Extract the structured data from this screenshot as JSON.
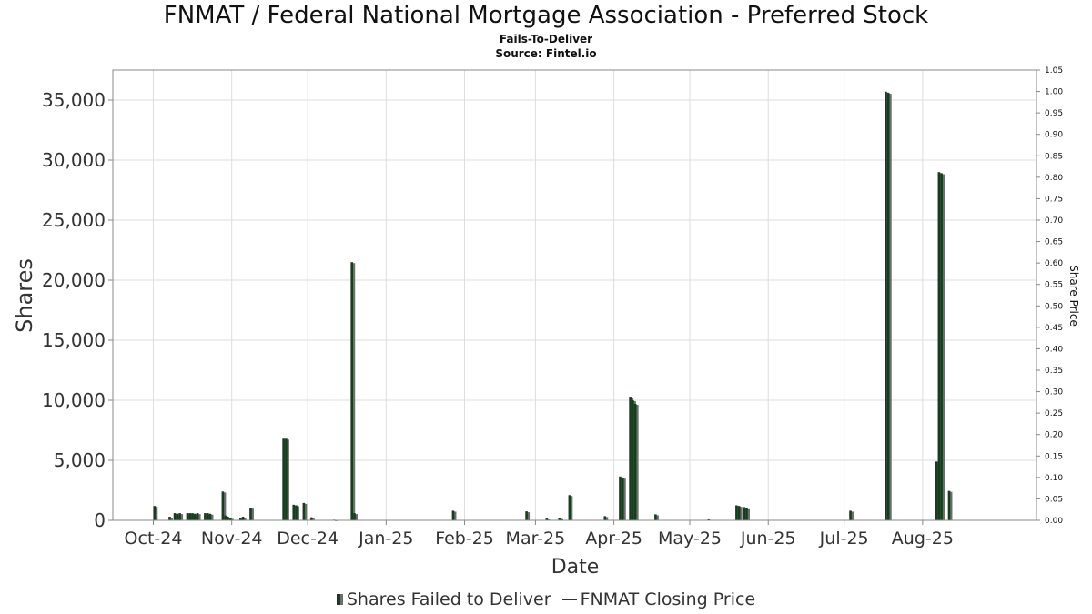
{
  "chart_data": {
    "type": "bar",
    "title": "FNMAT / Federal National Mortgage Association - Preferred Stock",
    "subtitle": "Fails-To-Deliver",
    "source": "Source: Fintel.io",
    "xlabel": "Date",
    "ylabel": "Shares",
    "y2label": "Share Price",
    "ylim": [
      0,
      37500
    ],
    "y2lim": [
      0,
      1.05
    ],
    "yticks": [
      "0",
      "5,000",
      "10,000",
      "15,000",
      "20,000",
      "25,000",
      "30,000",
      "35,000"
    ],
    "y2ticks": [
      "0.00",
      "0.05",
      "0.10",
      "0.15",
      "0.20",
      "0.25",
      "0.30",
      "0.35",
      "0.40",
      "0.45",
      "0.50",
      "0.55",
      "0.60",
      "0.65",
      "0.70",
      "0.75",
      "0.80",
      "0.85",
      "0.90",
      "0.95",
      "1.00",
      "1.05"
    ],
    "xticks": [
      "Oct-24",
      "Nov-24",
      "Dec-24",
      "Jan-25",
      "Feb-25",
      "Mar-25",
      "Apr-25",
      "May-25",
      "Jun-25",
      "Jul-25",
      "Aug-25"
    ],
    "grid": true,
    "legend_position": "bottom",
    "series": [
      {
        "name": "Shares Failed to Deliver",
        "color": "#163e1e",
        "shadow_color": "#6e6e6e",
        "points": [
          {
            "x": "2024-10-01",
            "y": 1200
          },
          {
            "x": "2024-10-07",
            "y": 300
          },
          {
            "x": "2024-10-09",
            "y": 600
          },
          {
            "x": "2024-10-10",
            "y": 550
          },
          {
            "x": "2024-10-11",
            "y": 600
          },
          {
            "x": "2024-10-14",
            "y": 600
          },
          {
            "x": "2024-10-15",
            "y": 600
          },
          {
            "x": "2024-10-16",
            "y": 600
          },
          {
            "x": "2024-10-17",
            "y": 550
          },
          {
            "x": "2024-10-18",
            "y": 600
          },
          {
            "x": "2024-10-21",
            "y": 600
          },
          {
            "x": "2024-10-22",
            "y": 600
          },
          {
            "x": "2024-10-23",
            "y": 550
          },
          {
            "x": "2024-10-28",
            "y": 2400
          },
          {
            "x": "2024-10-29",
            "y": 400
          },
          {
            "x": "2024-10-30",
            "y": 300
          },
          {
            "x": "2024-10-31",
            "y": 200
          },
          {
            "x": "2024-11-04",
            "y": 200
          },
          {
            "x": "2024-11-05",
            "y": 300
          },
          {
            "x": "2024-11-08",
            "y": 1050
          },
          {
            "x": "2024-11-21",
            "y": 6800
          },
          {
            "x": "2024-11-22",
            "y": 6800
          },
          {
            "x": "2024-11-25",
            "y": 1300
          },
          {
            "x": "2024-11-26",
            "y": 1250
          },
          {
            "x": "2024-11-29",
            "y": 1450
          },
          {
            "x": "2024-12-02",
            "y": 250
          },
          {
            "x": "2024-12-11",
            "y": 50
          },
          {
            "x": "2024-12-18",
            "y": 21500
          },
          {
            "x": "2024-12-19",
            "y": 600
          },
          {
            "x": "2025-01-27",
            "y": 800
          },
          {
            "x": "2025-02-25",
            "y": 750
          },
          {
            "x": "2025-03-05",
            "y": 150
          },
          {
            "x": "2025-03-10",
            "y": 150
          },
          {
            "x": "2025-03-11",
            "y": 100
          },
          {
            "x": "2025-03-14",
            "y": 2100
          },
          {
            "x": "2025-03-28",
            "y": 350
          },
          {
            "x": "2025-04-03",
            "y": 3650
          },
          {
            "x": "2025-04-04",
            "y": 3550
          },
          {
            "x": "2025-04-07",
            "y": 10300
          },
          {
            "x": "2025-04-08",
            "y": 10000
          },
          {
            "x": "2025-04-09",
            "y": 9700
          },
          {
            "x": "2025-04-17",
            "y": 500
          },
          {
            "x": "2025-05-08",
            "y": 80
          },
          {
            "x": "2025-05-19",
            "y": 1250
          },
          {
            "x": "2025-05-20",
            "y": 1200
          },
          {
            "x": "2025-05-22",
            "y": 1100
          },
          {
            "x": "2025-05-23",
            "y": 1000
          },
          {
            "x": "2025-07-03",
            "y": 800
          },
          {
            "x": "2025-07-17",
            "y": 35700
          },
          {
            "x": "2025-07-18",
            "y": 35600
          },
          {
            "x": "2025-08-06",
            "y": 4900
          },
          {
            "x": "2025-08-07",
            "y": 29000
          },
          {
            "x": "2025-08-08",
            "y": 28900
          },
          {
            "x": "2025-08-11",
            "y": 2450
          }
        ]
      },
      {
        "name": "FNMAT Closing Price",
        "color": "#333333",
        "points": []
      }
    ]
  },
  "legend": {
    "bars_label": "Shares Failed to Deliver",
    "line_label": "FNMAT Closing Price"
  }
}
